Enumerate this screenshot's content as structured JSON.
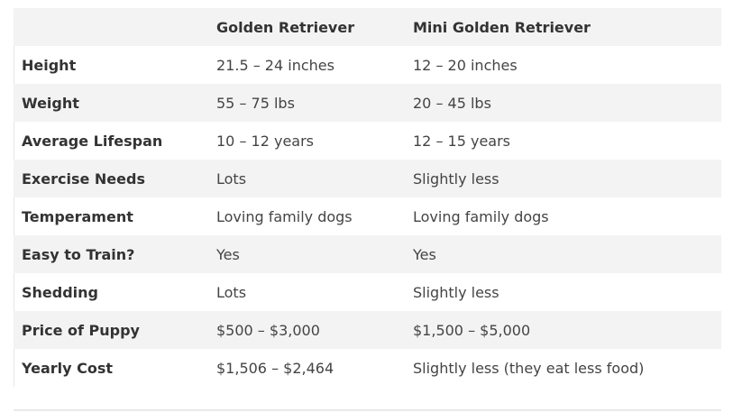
{
  "table": {
    "headers": [
      "",
      "Golden Retriever",
      "Mini Golden Retriever"
    ],
    "rows": [
      {
        "label": "Height",
        "golden": "21.5 – 24 inches",
        "mini": "12 – 20 inches"
      },
      {
        "label": "Weight",
        "golden": "55 – 75 lbs",
        "mini": "20 – 45 lbs"
      },
      {
        "label": "Average Lifespan",
        "golden": "10 – 12 years",
        "mini": "12 – 15 years"
      },
      {
        "label": "Exercise Needs",
        "golden": "Lots",
        "mini": "Slightly less"
      },
      {
        "label": "Temperament",
        "golden": "Loving family dogs",
        "mini": "Loving family dogs"
      },
      {
        "label": "Easy to Train?",
        "golden": "Yes",
        "mini": "Yes"
      },
      {
        "label": "Shedding",
        "golden": "Lots",
        "mini": "Slightly less"
      },
      {
        "label": "Price of Puppy",
        "golden": "$500 – $3,000",
        "mini": "$1,500 – $5,000"
      },
      {
        "label": "Yearly Cost",
        "golden": "$1,506 – $2,464",
        "mini": "Slightly less (they eat less food)"
      }
    ]
  },
  "colors": {
    "row_stripe": "#f3f3f3",
    "text": "#333333"
  }
}
